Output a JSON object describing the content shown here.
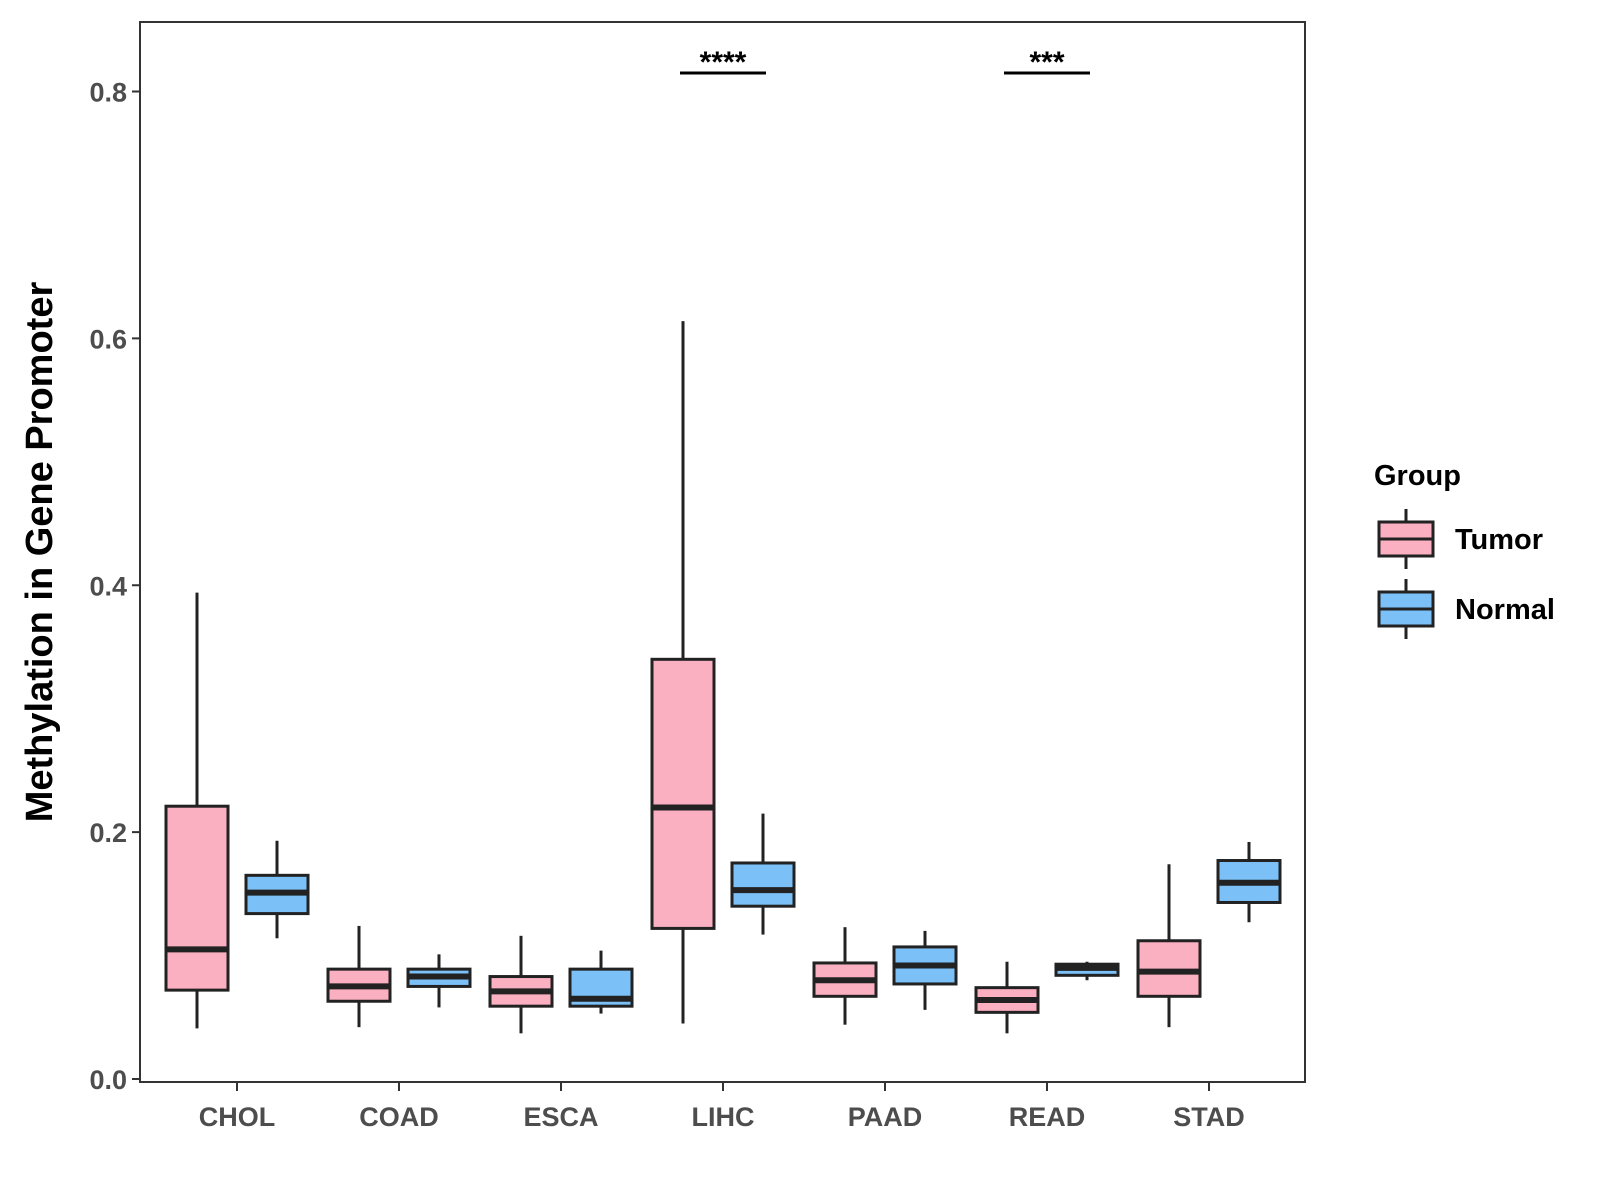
{
  "chart_data": {
    "type": "boxplot",
    "ylabel": "Methylation in Gene Promoter",
    "xlabel": "",
    "ylim": [
      0,
      0.86
    ],
    "yticks": [
      0.0,
      0.2,
      0.4,
      0.6,
      0.8
    ],
    "ytick_labels": [
      "0.0",
      "0.2",
      "0.4",
      "0.6",
      "0.8"
    ],
    "categories": [
      "CHOL",
      "COAD",
      "ESCA",
      "LIHC",
      "PAAD",
      "READ",
      "STAD"
    ],
    "legend": {
      "title": "Group",
      "position": "right",
      "entries": [
        {
          "name": "Tumor",
          "color": "#FBB0C2"
        },
        {
          "name": "Normal",
          "color": "#7BC1F8"
        }
      ]
    },
    "series": [
      {
        "name": "Tumor",
        "color": "#FBB0C2",
        "boxes": [
          {
            "category": "CHOL",
            "min": 0.041,
            "q1": 0.072,
            "median": 0.105,
            "q3": 0.221,
            "max": 0.394
          },
          {
            "category": "COAD",
            "min": 0.042,
            "q1": 0.063,
            "median": 0.075,
            "q3": 0.089,
            "max": 0.124
          },
          {
            "category": "ESCA",
            "min": 0.037,
            "q1": 0.059,
            "median": 0.071,
            "q3": 0.083,
            "max": 0.116
          },
          {
            "category": "LIHC",
            "min": 0.045,
            "q1": 0.122,
            "median": 0.22,
            "q3": 0.34,
            "max": 0.614
          },
          {
            "category": "PAAD",
            "min": 0.044,
            "q1": 0.067,
            "median": 0.08,
            "q3": 0.094,
            "max": 0.123
          },
          {
            "category": "READ",
            "min": 0.037,
            "q1": 0.054,
            "median": 0.064,
            "q3": 0.074,
            "max": 0.095
          },
          {
            "category": "STAD",
            "min": 0.042,
            "q1": 0.067,
            "median": 0.087,
            "q3": 0.112,
            "max": 0.174
          }
        ]
      },
      {
        "name": "Normal",
        "color": "#7BC1F8",
        "boxes": [
          {
            "category": "CHOL",
            "min": 0.114,
            "q1": 0.134,
            "median": 0.151,
            "q3": 0.165,
            "max": 0.193
          },
          {
            "category": "COAD",
            "min": 0.058,
            "q1": 0.075,
            "median": 0.083,
            "q3": 0.089,
            "max": 0.101
          },
          {
            "category": "ESCA",
            "min": 0.053,
            "q1": 0.059,
            "median": 0.065,
            "q3": 0.089,
            "max": 0.104
          },
          {
            "category": "LIHC",
            "min": 0.117,
            "q1": 0.14,
            "median": 0.153,
            "q3": 0.175,
            "max": 0.215
          },
          {
            "category": "PAAD",
            "min": 0.056,
            "q1": 0.077,
            "median": 0.092,
            "q3": 0.107,
            "max": 0.12
          },
          {
            "category": "READ",
            "min": 0.08,
            "q1": 0.084,
            "median": 0.09,
            "q3": 0.093,
            "max": 0.095
          },
          {
            "category": "STAD",
            "min": 0.127,
            "q1": 0.143,
            "median": 0.159,
            "q3": 0.177,
            "max": 0.192
          }
        ]
      }
    ],
    "annotations": [
      {
        "category": "LIHC",
        "text": "****",
        "y": 0.815
      },
      {
        "category": "READ",
        "text": "***",
        "y": 0.815
      }
    ]
  }
}
